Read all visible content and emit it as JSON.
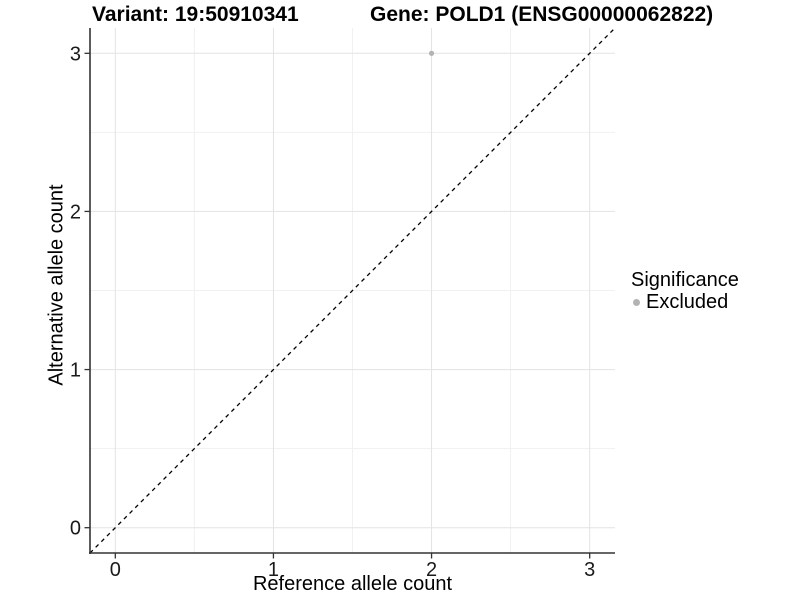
{
  "titles": {
    "variant": "Variant: 19:50910341",
    "gene": "Gene: POLD1 (ENSG00000062822)"
  },
  "legend": {
    "title": "Significance",
    "items": [
      {
        "label": "Excluded",
        "marker": "dot-icon",
        "color": "#b3b3b3"
      }
    ]
  },
  "colors": {
    "background": "#ffffff",
    "grid_major": "#e3e3e3",
    "grid_minor": "#f1f1f1",
    "axis_line": "#333333",
    "tick_mark": "#333333",
    "tick_label": "#1a1a1a",
    "reference_line": "#000000",
    "excluded_point": "#b3b3b3"
  },
  "chart_data": {
    "type": "scatter",
    "title": "Variant: 19:50910341",
    "subtitle": "Gene: POLD1 (ENSG00000062822)",
    "xlabel": "Reference allele count",
    "ylabel": "Alternative allele count",
    "xlim": [
      -0.16,
      3.16
    ],
    "ylim": [
      -0.16,
      3.16
    ],
    "xticks": [
      0,
      1,
      2,
      3
    ],
    "yticks": [
      0,
      1,
      2,
      3
    ],
    "x_minor_ticks": [
      0.5,
      1.5,
      2.5
    ],
    "y_minor_ticks": [
      0.5,
      1.5,
      2.5
    ],
    "grid": "major+minor",
    "legend_position": "right",
    "legend_title": "Significance",
    "series": [
      {
        "name": "Excluded",
        "type": "scatter",
        "color": "#b3b3b3",
        "points": [
          [
            2,
            3
          ]
        ]
      }
    ],
    "reference_line": {
      "kind": "identity y=x",
      "style": "dashed",
      "color": "#000000",
      "from": [
        -0.16,
        -0.16
      ],
      "to": [
        3.16,
        3.16
      ]
    }
  }
}
